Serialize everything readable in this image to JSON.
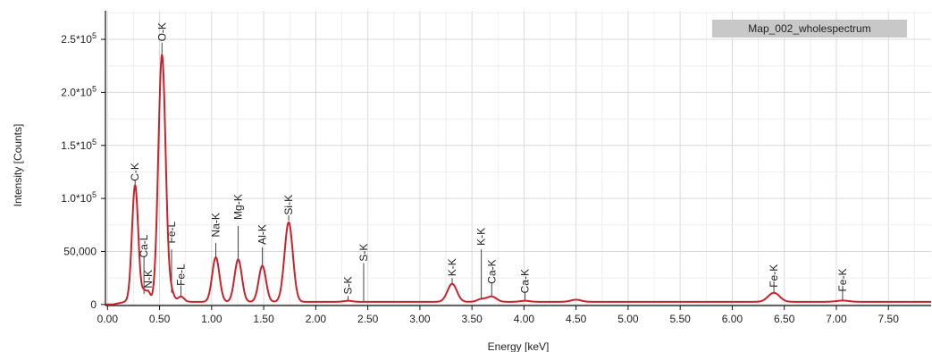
{
  "chart_data": {
    "type": "line",
    "title": "",
    "xlabel": "Energy [keV]",
    "ylabel": "Intensity [Counts]",
    "xlim": [
      -0.02,
      7.91
    ],
    "ylim": [
      -1000,
      277000
    ],
    "grid": true,
    "x_ticks": [
      0,
      0.5,
      1.0,
      1.5,
      2.0,
      2.5,
      3.0,
      3.5,
      4.0,
      4.5,
      5.0,
      5.5,
      6.0,
      6.5,
      7.0,
      7.5
    ],
    "x_tick_labels": [
      "0.00",
      "0.50",
      "1.00",
      "1.50",
      "2.00",
      "2.50",
      "3.00",
      "3.50",
      "4.00",
      "4.50",
      "5.00",
      "5.50",
      "6.00",
      "6.50",
      "7.00",
      "7.50"
    ],
    "y_ticks": [
      0,
      50000,
      100000,
      150000,
      200000,
      250000
    ],
    "y_tick_labels": [
      "0",
      "50,000",
      "1.0*10",
      "1.5*10",
      "2.0*10",
      "2.5*10"
    ],
    "y_tick_exponents": [
      "",
      "",
      "5",
      "5",
      "5",
      "5"
    ],
    "legend": {
      "label": "Map_002_wholespectrum",
      "placement": "top-right"
    },
    "series": [
      {
        "name": "Map_002_wholespectrum",
        "color": "#c8232c",
        "baseline": 2500,
        "peaks": [
          {
            "x": 0.265,
            "height": 110000,
            "width": 0.03
          },
          {
            "x": 0.35,
            "height": 9000,
            "width": 0.02
          },
          {
            "x": 0.392,
            "height": 9000,
            "width": 0.02
          },
          {
            "x": 0.523,
            "height": 233000,
            "width": 0.035
          },
          {
            "x": 0.615,
            "height": 8000,
            "width": 0.025
          },
          {
            "x": 0.705,
            "height": 5000,
            "width": 0.03
          },
          {
            "x": 1.04,
            "height": 42000,
            "width": 0.035
          },
          {
            "x": 1.255,
            "height": 40000,
            "width": 0.035
          },
          {
            "x": 1.487,
            "height": 34000,
            "width": 0.035
          },
          {
            "x": 1.74,
            "height": 75000,
            "width": 0.04
          },
          {
            "x": 2.31,
            "height": 1000,
            "width": 0.04
          },
          {
            "x": 3.31,
            "height": 17000,
            "width": 0.045
          },
          {
            "x": 3.59,
            "height": 2500,
            "width": 0.04
          },
          {
            "x": 3.69,
            "height": 5000,
            "width": 0.045
          },
          {
            "x": 4.01,
            "height": 1000,
            "width": 0.045
          },
          {
            "x": 4.5,
            "height": 2000,
            "width": 0.05
          },
          {
            "x": 6.4,
            "height": 8500,
            "width": 0.055
          },
          {
            "x": 7.06,
            "height": 1200,
            "width": 0.06
          }
        ],
        "points": [
          [
            -0.02,
            0
          ],
          [
            0.1,
            1000
          ],
          [
            0.17,
            2500
          ],
          [
            0.265,
            110000
          ],
          [
            0.33,
            9000
          ],
          [
            0.392,
            11000
          ],
          [
            0.523,
            235000
          ],
          [
            0.615,
            10000
          ],
          [
            0.705,
            6000
          ],
          [
            0.85,
            3500
          ],
          [
            1.04,
            44000
          ],
          [
            1.255,
            42000
          ],
          [
            1.487,
            36000
          ],
          [
            1.74,
            78000
          ],
          [
            1.95,
            4000
          ],
          [
            2.31,
            3500
          ],
          [
            2.46,
            3000
          ],
          [
            3.31,
            19000
          ],
          [
            3.59,
            5000
          ],
          [
            3.69,
            7500
          ],
          [
            4.01,
            3500
          ],
          [
            4.5,
            4500
          ],
          [
            5.5,
            2500
          ],
          [
            6.4,
            11000
          ],
          [
            7.06,
            3500
          ],
          [
            7.91,
            2000
          ]
        ]
      }
    ],
    "annotations": [
      {
        "label": "C-K",
        "x": 0.265,
        "label_y": 125000,
        "line_top": 117000,
        "line_bottom": 112000
      },
      {
        "label": "N-K",
        "x": 0.392,
        "label_y": 24000,
        "line_top": 14000,
        "line_bottom": 12000
      },
      {
        "label": "Ca-L",
        "x": 0.35,
        "label_y": 55000,
        "line_top": 45000,
        "line_bottom": 10000
      },
      {
        "label": "O-K",
        "x": 0.523,
        "label_y": 257000,
        "line_top": 247000,
        "line_bottom": 236000
      },
      {
        "label": "Fe-L",
        "x": 0.615,
        "label_y": 68000,
        "line_top": 52000,
        "line_bottom": 11000
      },
      {
        "label": "Fe-L",
        "x": 0.705,
        "label_y": 28000,
        "line_top": 18000,
        "line_bottom": 7000
      },
      {
        "label": "Na-K",
        "x": 1.04,
        "label_y": 75000,
        "line_top": 58000,
        "line_bottom": 45000
      },
      {
        "label": "Mg-K",
        "x": 1.255,
        "label_y": 92000,
        "line_top": 74000,
        "line_bottom": 43000
      },
      {
        "label": "Al-K",
        "x": 1.487,
        "label_y": 66000,
        "line_top": 54000,
        "line_bottom": 37000
      },
      {
        "label": "Si-K",
        "x": 1.74,
        "label_y": 94000,
        "line_top": 84000,
        "line_bottom": 79000
      },
      {
        "label": "S-K",
        "x": 2.31,
        "label_y": 18000,
        "line_top": 8000,
        "line_bottom": 3500
      },
      {
        "label": "S-K",
        "x": 2.46,
        "label_y": 49000,
        "line_top": 39000,
        "line_bottom": 3000
      },
      {
        "label": "K-K",
        "x": 3.31,
        "label_y": 35000,
        "line_top": 25000,
        "line_bottom": 19500
      },
      {
        "label": "K-K",
        "x": 3.59,
        "label_y": 64000,
        "line_top": 52000,
        "line_bottom": 5000
      },
      {
        "label": "Ca-K",
        "x": 3.69,
        "label_y": 31000,
        "line_top": 21000,
        "line_bottom": 8000
      },
      {
        "label": "Ca-K",
        "x": 4.01,
        "label_y": 22000,
        "line_top": 12000,
        "line_bottom": 4000
      },
      {
        "label": "Fe-K",
        "x": 6.4,
        "label_y": 27000,
        "line_top": 17000,
        "line_bottom": 11500
      },
      {
        "label": "Fe-K",
        "x": 7.06,
        "label_y": 23000,
        "line_top": 13000,
        "line_bottom": 4000
      }
    ]
  }
}
